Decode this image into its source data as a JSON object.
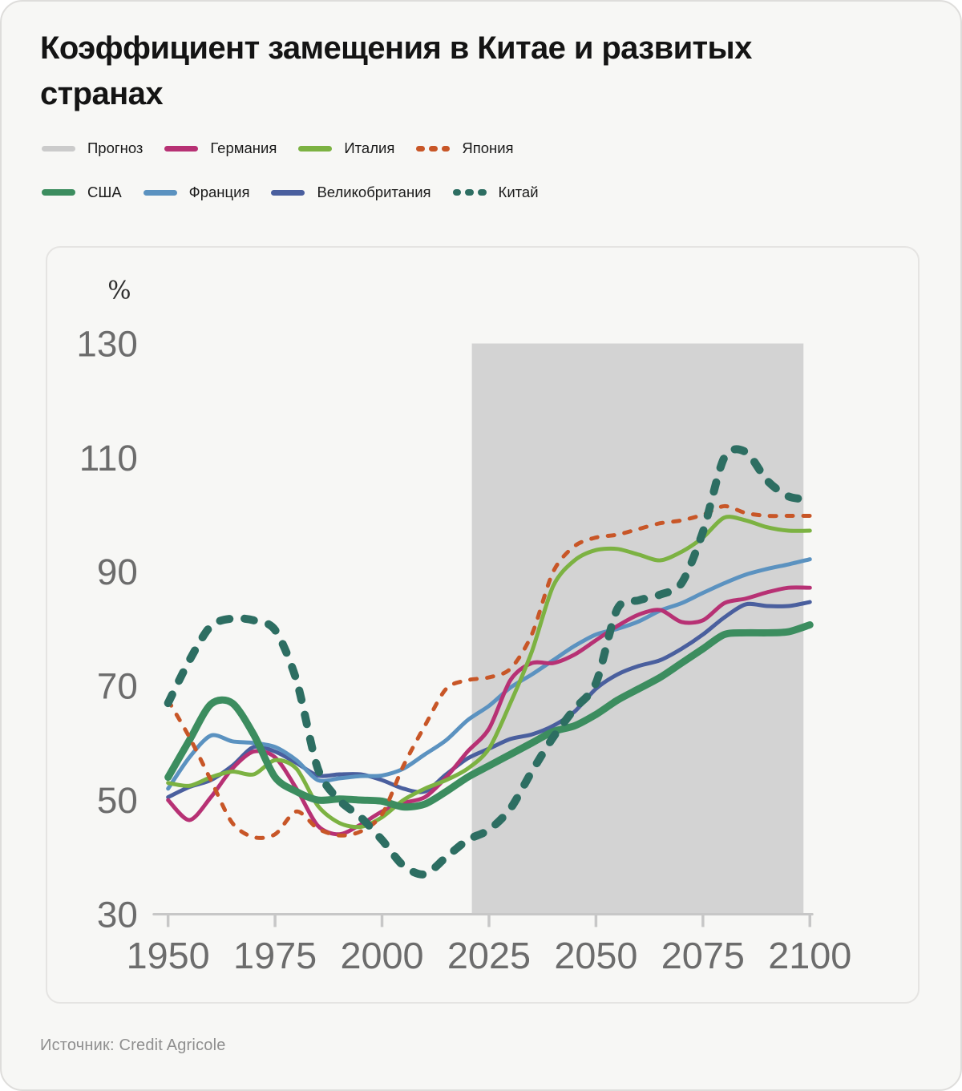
{
  "title": "Коэффициент замещения в Китае и развитых странах",
  "source": {
    "text": "Источник: Credit Agricole"
  },
  "legend": {
    "items": [
      {
        "label": "Прогноз",
        "color": "#cbcbcb",
        "style": "solid",
        "weight": "regular"
      },
      {
        "label": "Германия",
        "color": "#b73174",
        "style": "solid",
        "weight": "regular"
      },
      {
        "label": "Италия",
        "color": "#7cb242",
        "style": "solid",
        "weight": "regular"
      },
      {
        "label": "Япония",
        "color": "#c85627",
        "style": "dashed",
        "weight": "regular"
      },
      {
        "label": "США",
        "color": "#3c8d5f",
        "style": "solid",
        "weight": "bold"
      },
      {
        "label": "Франция",
        "color": "#5b92c0",
        "style": "solid",
        "weight": "regular"
      },
      {
        "label": "Великобритания",
        "color": "#4a5f9e",
        "style": "solid",
        "weight": "regular"
      },
      {
        "label": "Китай",
        "color": "#2d6e62",
        "style": "dashed",
        "weight": "bold"
      }
    ]
  },
  "chart_data": {
    "type": "line",
    "title": "Коэффициент замещения в Китае и развитых странах",
    "unit_label": "%",
    "xlim": [
      1950,
      2100
    ],
    "ylim": [
      30,
      130
    ],
    "x_ticks": [
      1950,
      1975,
      2000,
      2025,
      2050,
      2075,
      2100
    ],
    "y_ticks": [
      130,
      110,
      90,
      70,
      50,
      30
    ],
    "grid": false,
    "legend_position": "top",
    "forecast_region": {
      "label": "Прогноз",
      "start_year": 2021,
      "end_year": 2098.5,
      "fill": "#d3d3d3"
    },
    "axis_color": "#c7c7c7",
    "x": [
      1950,
      1955,
      1960,
      1965,
      1970,
      1975,
      1980,
      1985,
      1990,
      1995,
      2000,
      2005,
      2010,
      2015,
      2020,
      2025,
      2030,
      2035,
      2040,
      2045,
      2050,
      2055,
      2060,
      2065,
      2070,
      2075,
      2080,
      2085,
      2090,
      2095,
      2100
    ],
    "draw_order": [
      "uk",
      "france",
      "germany",
      "italy",
      "usa",
      "japan",
      "china"
    ],
    "series": [
      {
        "id": "germany",
        "name": "Германия",
        "color": "#b73174",
        "style": "solid",
        "weight": "regular",
        "values": [
          50,
          46.5,
          50.5,
          55.5,
          58.5,
          57.5,
          52,
          45.5,
          44,
          45.7,
          48,
          49.5,
          50.5,
          54,
          58.5,
          62.5,
          71,
          74,
          74,
          75.5,
          78,
          80.5,
          82.5,
          83.3,
          81.2,
          81.5,
          84.5,
          85.3,
          86.4,
          87.2,
          87.2
        ]
      },
      {
        "id": "italy",
        "name": "Италия",
        "color": "#7cb242",
        "style": "solid",
        "weight": "regular",
        "values": [
          53,
          52.5,
          54,
          55,
          54.5,
          57,
          55.5,
          49,
          46,
          45.3,
          47,
          50,
          52,
          53.5,
          55.5,
          59,
          67,
          76,
          87.5,
          92,
          93.8,
          94,
          93,
          92,
          93.5,
          96,
          99.5,
          99,
          97.8,
          97.2,
          97.2
        ]
      },
      {
        "id": "japan",
        "name": "Япония",
        "color": "#c85627",
        "style": "dashed",
        "weight": "regular",
        "values": [
          67.5,
          61,
          53.5,
          46,
          43.5,
          44,
          48,
          45,
          43.8,
          44.5,
          47.5,
          56,
          63,
          69.5,
          71,
          71.5,
          73,
          79,
          90,
          94.5,
          96,
          96.5,
          97.5,
          98.5,
          99,
          100,
          101.5,
          100.3,
          99.8,
          99.8,
          99.8
        ]
      },
      {
        "id": "usa",
        "name": "США",
        "color": "#3c8d5f",
        "style": "solid",
        "weight": "bold",
        "values": [
          54,
          60.5,
          66.8,
          67,
          61.5,
          54,
          51.5,
          50,
          50.2,
          50,
          49.8,
          48.8,
          49.3,
          51.5,
          54,
          56,
          58,
          60,
          62,
          63,
          65,
          67.5,
          69.5,
          71.5,
          74,
          76.5,
          79,
          79.3,
          79.3,
          79.5,
          80.7
        ]
      },
      {
        "id": "france",
        "name": "Франция",
        "color": "#5b92c0",
        "style": "solid",
        "weight": "regular",
        "values": [
          52,
          57.5,
          61.3,
          60.3,
          60,
          59.3,
          57,
          53.5,
          53.8,
          54.2,
          54.3,
          55.5,
          58,
          60.5,
          64,
          66.5,
          69.7,
          72,
          74.5,
          77,
          79,
          80,
          81.3,
          83.2,
          84.5,
          86.3,
          88,
          89.5,
          90.5,
          91.3,
          92.2
        ]
      },
      {
        "id": "uk",
        "name": "Великобритания",
        "color": "#4a5f9e",
        "style": "solid",
        "weight": "regular",
        "values": [
          50.5,
          52.3,
          53.5,
          56,
          59.3,
          58.5,
          56.5,
          54.3,
          54.5,
          54.5,
          53.5,
          52,
          51.5,
          54.5,
          57.3,
          59,
          60.7,
          61.5,
          63,
          65.5,
          69.5,
          72,
          73.5,
          74.5,
          76.5,
          79,
          82,
          84.3,
          84,
          84,
          84.7
        ]
      },
      {
        "id": "china",
        "name": "Китай",
        "color": "#2d6e62",
        "style": "dashed",
        "weight": "bold",
        "values": [
          67,
          74.5,
          80.5,
          81.8,
          81.5,
          79.8,
          71,
          55.5,
          50,
          47,
          43,
          38.5,
          37,
          40,
          43,
          44.8,
          48.5,
          55,
          61,
          66,
          70.5,
          83.5,
          85,
          86,
          88,
          97,
          110,
          111,
          106,
          103.2,
          102.7
        ]
      }
    ]
  }
}
